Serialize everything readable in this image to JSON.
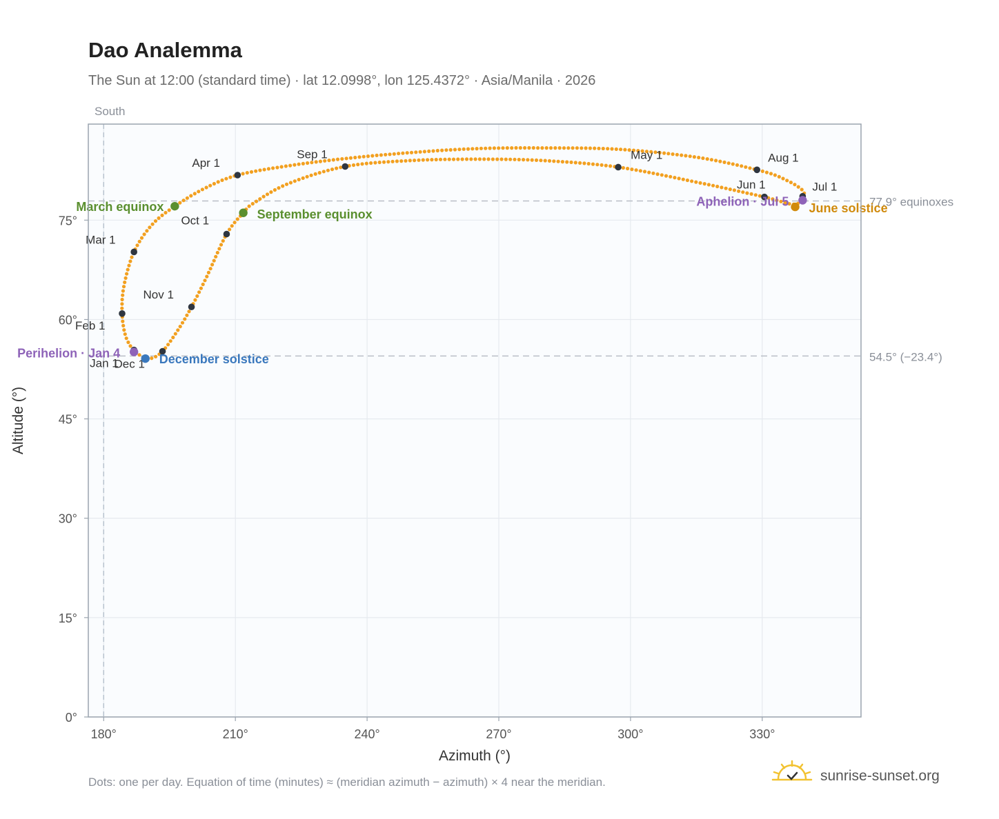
{
  "chart_data": {
    "type": "scatter",
    "title": "Dao Analemma",
    "subtitle": "The Sun at 12:00 (standard time) · lat 12.0998°, lon 125.4372° · Asia/Manila · 2026",
    "xlabel": "Azimuth (°)",
    "ylabel": "Altitude (°)",
    "xlim": [
      176.5,
      352.5
    ],
    "ylim": [
      0,
      89.5
    ],
    "xticks": [
      180,
      210,
      240,
      270,
      300,
      330
    ],
    "xtick_labels": [
      "180°",
      "210°",
      "240°",
      "270°",
      "300°",
      "330°"
    ],
    "yticks": [
      0,
      15,
      30,
      45,
      60,
      75
    ],
    "ytick_labels": [
      "0°",
      "15°",
      "30°",
      "45°",
      "60°",
      "75°"
    ],
    "grid": true,
    "south_meridian": {
      "azimuth": 180,
      "label": "South"
    },
    "reference_lines": [
      {
        "altitude": 77.9,
        "label": "77.9° equinoxes"
      },
      {
        "altitude": 54.5,
        "label": "54.5° (−23.4°)"
      }
    ],
    "month_marks": [
      {
        "label": "Jan 1",
        "azimuth": 186.9,
        "altitude": 55.4
      },
      {
        "label": "Feb 1",
        "azimuth": 184.2,
        "altitude": 60.9
      },
      {
        "label": "Mar 1",
        "azimuth": 186.9,
        "altitude": 70.2
      },
      {
        "label": "Apr 1",
        "azimuth": 210.5,
        "altitude": 81.8
      },
      {
        "label": "May 1",
        "azimuth": 297.2,
        "altitude": 83.0
      },
      {
        "label": "Jun 1",
        "azimuth": 330.5,
        "altitude": 78.5
      },
      {
        "label": "Jul 1",
        "azimuth": 339.2,
        "altitude": 78.6
      },
      {
        "label": "Aug 1",
        "azimuth": 328.8,
        "altitude": 82.6
      },
      {
        "label": "Sep 1",
        "azimuth": 235.0,
        "altitude": 83.1
      },
      {
        "label": "Oct 1",
        "azimuth": 208.0,
        "altitude": 72.9
      },
      {
        "label": "Nov 1",
        "azimuth": 200.0,
        "altitude": 61.9
      },
      {
        "label": "Dec 1",
        "azimuth": 193.4,
        "altitude": 55.2
      }
    ],
    "events": [
      {
        "label": "March equinox",
        "azimuth": 196.2,
        "altitude": 77.1,
        "color": "#5a8f2e"
      },
      {
        "label": "June solstice",
        "azimuth": 337.5,
        "altitude": 77.0,
        "color": "#d08a0c"
      },
      {
        "label": "Aphelion · Jul 5",
        "azimuth": 339.2,
        "altitude": 78.0,
        "color": "#8e63b8"
      },
      {
        "label": "September equinox",
        "azimuth": 211.8,
        "altitude": 76.1,
        "color": "#5a8f2e"
      },
      {
        "label": "December solstice",
        "azimuth": 189.5,
        "altitude": 54.1,
        "color": "#3a78bd"
      },
      {
        "label": "Perihelion · Jan 4",
        "azimuth": 186.9,
        "altitude": 55.1,
        "color": "#8e63b8"
      }
    ],
    "curve_path": [
      [
        193.4,
        55.2
      ],
      [
        190.5,
        54.1
      ],
      [
        188.0,
        54.7
      ],
      [
        186.9,
        55.2
      ],
      [
        185.0,
        57.5
      ],
      [
        184.2,
        60.9
      ],
      [
        184.6,
        65.0
      ],
      [
        186.9,
        70.2
      ],
      [
        191.0,
        74.3
      ],
      [
        196.2,
        77.1
      ],
      [
        203.0,
        79.8
      ],
      [
        210.5,
        81.8
      ],
      [
        222.0,
        83.2
      ],
      [
        235.0,
        84.3
      ],
      [
        250.0,
        85.2
      ],
      [
        265.0,
        85.8
      ],
      [
        280.0,
        85.9
      ],
      [
        297.2,
        85.7
      ],
      [
        315.0,
        84.5
      ],
      [
        328.8,
        82.6
      ],
      [
        335.0,
        81.2
      ],
      [
        339.5,
        79.2
      ],
      [
        337.5,
        77.4
      ],
      [
        330.5,
        78.5
      ],
      [
        316.0,
        80.6
      ],
      [
        297.2,
        83.0
      ],
      [
        280.0,
        84.0
      ],
      [
        265.0,
        84.2
      ],
      [
        250.0,
        84.0
      ],
      [
        235.0,
        83.1
      ],
      [
        222.0,
        80.5
      ],
      [
        214.0,
        77.5
      ],
      [
        211.8,
        76.1
      ],
      [
        208.0,
        72.9
      ],
      [
        203.5,
        66.5
      ],
      [
        200.0,
        61.9
      ],
      [
        197.0,
        58.5
      ],
      [
        193.4,
        55.2
      ]
    ],
    "dot_color": "#f2a020",
    "footnote": "Dots: one per day. Equation of time (minutes) ≈ (meridian azimuth − azimuth) × 4 near the meridian."
  },
  "brand": {
    "name": "sunrise-sunset.org",
    "icon": "sun-check-icon"
  }
}
